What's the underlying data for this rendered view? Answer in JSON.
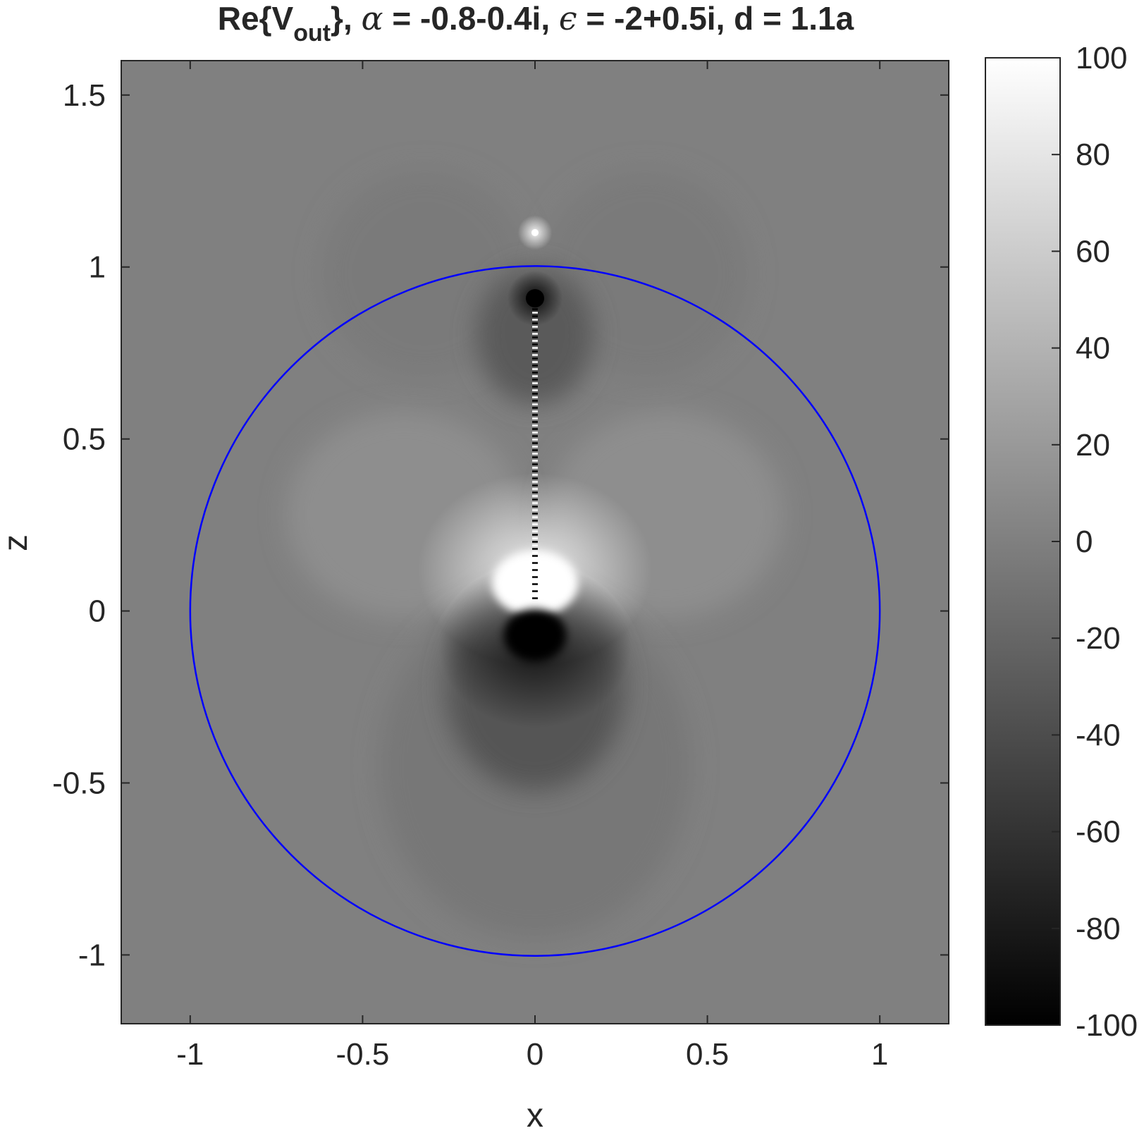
{
  "chart_data": {
    "type": "heatmap",
    "title": {
      "prefix": "Re{V",
      "subscript": "out",
      "suffix": "}, ",
      "alpha_symbol": "α",
      "alpha_text": " = -0.8-0.4i,  ",
      "epsilon_symbol": "ϵ",
      "epsilon_text": " = -2+0.5i,  d = 1.1a"
    },
    "xlabel": "x",
    "ylabel": "z",
    "xlim": [
      -1.2,
      1.2
    ],
    "ylim": [
      -1.2,
      1.6
    ],
    "x_ticks": [
      -1,
      -0.5,
      0,
      0.5,
      1
    ],
    "x_tick_labels": [
      "-1",
      "-0.5",
      "0",
      "0.5",
      "1"
    ],
    "y_ticks": [
      -1,
      -0.5,
      0,
      0.5,
      1,
      1.5
    ],
    "y_tick_labels": [
      "-1",
      "-0.5",
      "0",
      "0.5",
      "1",
      "1.5"
    ],
    "colormap": "gray",
    "clim": [
      -100,
      100
    ],
    "colorbar_ticks": [
      -100,
      -80,
      -60,
      -40,
      -20,
      0,
      20,
      40,
      60,
      80,
      100
    ],
    "colorbar_tick_labels": [
      "-100",
      "-80",
      "-60",
      "-40",
      "-20",
      "0",
      "20",
      "40",
      "60",
      "80",
      "100"
    ],
    "overlay": {
      "shape": "circle",
      "center": [
        0,
        0
      ],
      "radius": 1,
      "color": "#0000ff"
    },
    "features": [
      {
        "kind": "source-point",
        "x": 0,
        "z": 1.1,
        "value": 100
      },
      {
        "kind": "image-point",
        "x": 0,
        "z": 0.909,
        "value": -100
      },
      {
        "kind": "dipole-positive-lobe",
        "x": 0,
        "z": 0.08,
        "value": 100
      },
      {
        "kind": "dipole-negative-lobe",
        "x": 0,
        "z": -0.07,
        "value": -100
      },
      {
        "kind": "branch-cut",
        "x": 0,
        "z_from": 0.03,
        "z_to": 0.88
      }
    ],
    "grid": false,
    "legend": "none"
  }
}
